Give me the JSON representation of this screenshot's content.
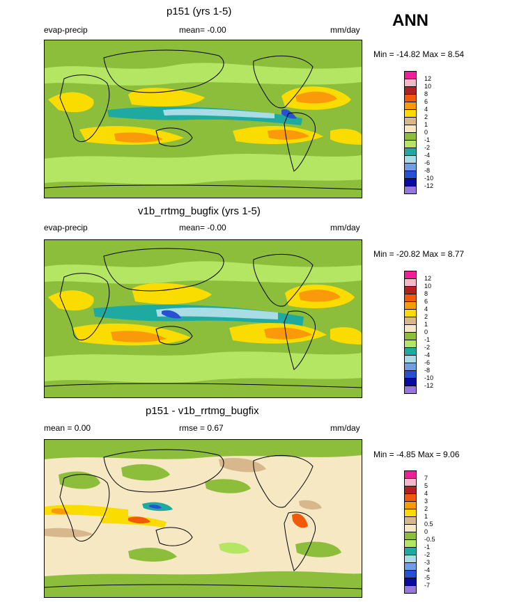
{
  "season": "ANN",
  "panels": [
    {
      "title": "p151 (yrs 1-5)",
      "left_label": "evap-precip",
      "center_label": "mean=  -0.00",
      "units": "mm/day",
      "stats": "Min = -14.82 Max =   8.54",
      "levels": [
        "12",
        "10",
        "8",
        "6",
        "4",
        "2",
        "1",
        "0",
        "-1",
        "-2",
        "-4",
        "-6",
        "-8",
        "-10",
        "-12"
      ],
      "colors": [
        "#f01e98",
        "#f5b8c8",
        "#b42020",
        "#f05a0a",
        "#fa9a0a",
        "#fadc00",
        "#d7b88c",
        "#f5e8c3",
        "#8cbe3c",
        "#b4e664",
        "#1eaaa0",
        "#aadce6",
        "#6e9ee6",
        "#2850d2",
        "#0a0aa0",
        "#9678dc"
      ]
    },
    {
      "title": "v1b_rrtmg_bugfix (yrs 1-5)",
      "left_label": "evap-precip",
      "center_label": "mean=  -0.00",
      "units": "mm/day",
      "stats": "Min = -20.82 Max =   8.77",
      "levels": [
        "12",
        "10",
        "8",
        "6",
        "4",
        "2",
        "1",
        "0",
        "-1",
        "-2",
        "-4",
        "-6",
        "-8",
        "-10",
        "-12"
      ],
      "colors": [
        "#f01e98",
        "#f5b8c8",
        "#b42020",
        "#f05a0a",
        "#fa9a0a",
        "#fadc00",
        "#d7b88c",
        "#f5e8c3",
        "#8cbe3c",
        "#b4e664",
        "#1eaaa0",
        "#aadce6",
        "#6e9ee6",
        "#2850d2",
        "#0a0aa0",
        "#9678dc"
      ]
    },
    {
      "title": "p151 - v1b_rrtmg_bugfix",
      "left_label": "mean =   0.00",
      "center_label": "rmse =   0.67",
      "units": "mm/day",
      "stats": "Min =  -4.85 Max =   9.06",
      "levels": [
        "7",
        "5",
        "4",
        "3",
        "2",
        "1",
        "0.5",
        "0",
        "-0.5",
        "-1",
        "-2",
        "-3",
        "-4",
        "-5",
        "-7"
      ],
      "colors": [
        "#f01e98",
        "#f5b8c8",
        "#b42020",
        "#f05a0a",
        "#fa9a0a",
        "#fadc00",
        "#d7b88c",
        "#f5e8c3",
        "#8cbe3c",
        "#b4e664",
        "#1eaaa0",
        "#aadce6",
        "#6e9ee6",
        "#2850d2",
        "#0a0aa0",
        "#9678dc"
      ]
    }
  ],
  "chart_data": [
    {
      "type": "heatmap",
      "title": "p151 (yrs 1-5)",
      "variable": "evap-precip",
      "units": "mm/day",
      "mean": -0.0,
      "min": -14.82,
      "max": 8.54,
      "contour_levels": [
        -12,
        -10,
        -8,
        -6,
        -4,
        -2,
        -1,
        0,
        1,
        2,
        4,
        6,
        8,
        10,
        12
      ],
      "projection": "cylindrical equidistant, centered on 180"
    },
    {
      "type": "heatmap",
      "title": "v1b_rrtmg_bugfix (yrs 1-5)",
      "variable": "evap-precip",
      "units": "mm/day",
      "mean": -0.0,
      "min": -20.82,
      "max": 8.77,
      "contour_levels": [
        -12,
        -10,
        -8,
        -6,
        -4,
        -2,
        -1,
        0,
        1,
        2,
        4,
        6,
        8,
        10,
        12
      ],
      "projection": "cylindrical equidistant, centered on 180"
    },
    {
      "type": "heatmap",
      "title": "p151 - v1b_rrtmg_bugfix",
      "variable": "difference",
      "units": "mm/day",
      "mean": 0.0,
      "rmse": 0.67,
      "min": -4.85,
      "max": 9.06,
      "contour_levels": [
        -7,
        -5,
        -4,
        -3,
        -2,
        -1,
        -0.5,
        0,
        0.5,
        1,
        2,
        3,
        4,
        5,
        7
      ],
      "projection": "cylindrical equidistant, centered on 180"
    }
  ]
}
